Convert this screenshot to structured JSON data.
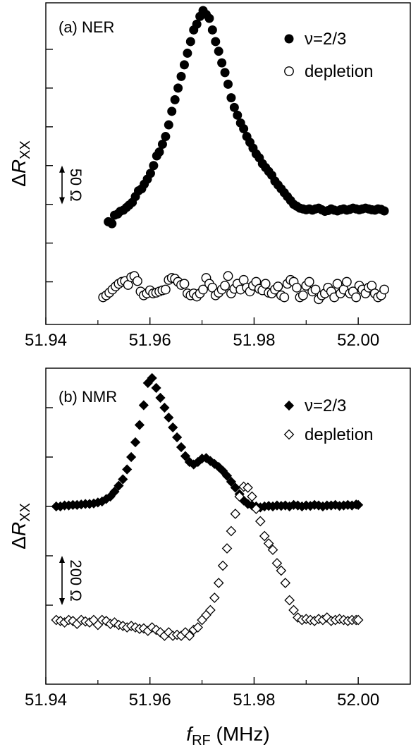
{
  "chart_data": [
    {
      "type": "scatter",
      "panel_label": "(a) NER",
      "ylabel": "ΔR",
      "ylabel_sub": "XX",
      "xlim": [
        51.94,
        52.01
      ],
      "x_ticks": [
        51.94,
        51.96,
        51.98,
        52.0
      ],
      "x_tick_labels": [
        "51.94",
        "51.96",
        "51.98",
        "52.00"
      ],
      "ylim": [
        -2.1,
        6.2
      ],
      "y_ticks": [
        -1,
        0,
        1,
        2,
        3,
        4,
        5
      ],
      "y_tick_labels": [],
      "y_units": "50 Ω per tick",
      "scale_bar": {
        "label": "50 Ω",
        "from": 1,
        "to": 2
      },
      "legend": {
        "position": "top-right"
      },
      "series": [
        {
          "name": "ν=2/3",
          "marker": "filled-circle",
          "x": [
            51.952,
            51.9527,
            51.9532,
            51.9538,
            51.9543,
            51.9549,
            51.9555,
            51.956,
            51.9566,
            51.9572,
            51.9578,
            51.9584,
            51.9589,
            51.9595,
            51.9601,
            51.9607,
            51.9613,
            51.9618,
            51.9624,
            51.963,
            51.9636,
            51.9642,
            51.9648,
            51.9654,
            51.966,
            51.9666,
            51.9672,
            51.9678,
            51.9684,
            51.969,
            51.9696,
            51.9702,
            51.9708,
            51.9714,
            51.972,
            51.9726,
            51.9732,
            51.9738,
            51.9744,
            51.975,
            51.9756,
            51.9762,
            51.9768,
            51.9774,
            51.978,
            51.9786,
            51.9792,
            51.9798,
            51.9804,
            51.981,
            51.9816,
            51.9822,
            51.9828,
            51.9834,
            51.984,
            51.9846,
            51.9852,
            51.9858,
            51.9864,
            51.987,
            51.9876,
            51.9882,
            51.9888,
            51.9894,
            51.99,
            51.9906,
            51.9912,
            51.9918,
            51.9924,
            51.993,
            51.9936,
            51.9942,
            51.9948,
            51.9954,
            51.996,
            51.9966,
            51.9972,
            51.9978,
            51.9984,
            51.999,
            51.9996,
            52.0002,
            52.0008,
            52.0014,
            52.002,
            52.0026,
            52.0032,
            52.0038,
            52.0044,
            52.005
          ],
          "y": [
            0.55,
            0.5,
            0.72,
            0.75,
            0.82,
            0.85,
            0.92,
            0.98,
            1.05,
            1.2,
            1.35,
            1.4,
            1.52,
            1.65,
            1.8,
            2.0,
            2.25,
            2.35,
            2.55,
            2.75,
            3.05,
            3.4,
            3.7,
            4.0,
            4.3,
            4.6,
            4.9,
            5.2,
            5.5,
            5.65,
            5.85,
            6.0,
            5.9,
            5.8,
            5.5,
            5.2,
            4.95,
            4.65,
            4.4,
            4.1,
            3.75,
            3.5,
            3.3,
            3.1,
            2.95,
            2.75,
            2.6,
            2.45,
            2.3,
            2.2,
            2.05,
            1.95,
            1.85,
            1.75,
            1.6,
            1.5,
            1.4,
            1.3,
            1.2,
            1.1,
            1.0,
            0.95,
            0.9,
            0.88,
            0.86,
            0.88,
            0.85,
            0.88,
            0.9,
            0.86,
            0.82,
            0.84,
            0.88,
            0.85,
            0.83,
            0.86,
            0.88,
            0.85,
            0.87,
            0.9,
            0.88,
            0.86,
            0.88,
            0.9,
            0.88,
            0.86,
            0.85,
            0.88,
            0.87,
            0.83
          ]
        },
        {
          "name": "depletion",
          "marker": "open-circle",
          "x": [
            51.951,
            51.9516,
            51.9522,
            51.9528,
            51.9534,
            51.954,
            51.9546,
            51.9552,
            51.9558,
            51.9564,
            51.957,
            51.9576,
            51.9582,
            51.9588,
            51.9594,
            51.96,
            51.9606,
            51.9612,
            51.9618,
            51.9624,
            51.963,
            51.9636,
            51.9642,
            51.9648,
            51.9654,
            51.966,
            51.9666,
            51.9672,
            51.9678,
            51.9684,
            51.969,
            51.9696,
            51.9702,
            51.9708,
            51.9714,
            51.972,
            51.9726,
            51.9732,
            51.9738,
            51.9744,
            51.975,
            51.9756,
            51.9762,
            51.9768,
            51.9774,
            51.978,
            51.9786,
            51.9792,
            51.9798,
            51.9804,
            51.981,
            51.9816,
            51.9822,
            51.9828,
            51.9834,
            51.984,
            51.9846,
            51.9852,
            51.9858,
            51.9864,
            51.987,
            51.9876,
            51.9882,
            51.9888,
            51.9894,
            51.99,
            51.9906,
            51.9912,
            51.9918,
            51.9924,
            51.993,
            51.9936,
            51.9942,
            51.9948,
            51.9954,
            51.996,
            51.9966,
            51.9972,
            51.9978,
            51.9984,
            51.999,
            51.9996,
            52.0002,
            52.0008,
            52.0014,
            52.002,
            52.0026,
            52.0032,
            52.0038,
            52.0044,
            52.005
          ],
          "y": [
            -1.4,
            -1.35,
            -1.28,
            -1.2,
            -1.12,
            -1.05,
            -1.0,
            -0.98,
            -1.08,
            -0.88,
            -0.85,
            -0.98,
            -1.25,
            -1.35,
            -1.3,
            -1.22,
            -1.3,
            -1.28,
            -1.25,
            -1.22,
            -1.2,
            -0.95,
            -0.9,
            -0.92,
            -1.0,
            -1.08,
            -1.05,
            -1.3,
            -1.35,
            -1.3,
            -1.38,
            -1.3,
            -1.2,
            -0.9,
            -1.05,
            -1.15,
            -1.35,
            -1.28,
            -1.2,
            -1.1,
            -0.85,
            -1.3,
            -1.18,
            -1.05,
            -1.2,
            -0.95,
            -1.15,
            -1.25,
            -1.1,
            -1.0,
            -1.18,
            -1.22,
            -1.05,
            -1.28,
            -1.3,
            -1.2,
            -1.12,
            -1.35,
            -1.4,
            -1.05,
            -0.95,
            -1.0,
            -1.15,
            -1.4,
            -1.35,
            -1.1,
            -1.0,
            -1.25,
            -1.2,
            -1.45,
            -1.35,
            -1.3,
            -1.15,
            -1.25,
            -1.4,
            -1.05,
            -1.3,
            -1.2,
            -1.0,
            -1.3,
            -1.25,
            -1.4,
            -1.1,
            -1.2,
            -1.3,
            -1.15,
            -1.1,
            -1.3,
            -1.4,
            -1.35,
            -1.2
          ]
        }
      ]
    },
    {
      "type": "scatter",
      "panel_label": "(b) NMR",
      "ylabel": "ΔR",
      "ylabel_sub": "XX",
      "xlabel": "f",
      "xlabel_sub": "RF",
      "xlabel_unit": " (MHz)",
      "xlim": [
        51.94,
        52.01
      ],
      "x_ticks": [
        51.94,
        51.96,
        51.98,
        52.0
      ],
      "x_tick_labels": [
        "51.94",
        "51.96",
        "51.98",
        "52.00"
      ],
      "ylim": [
        -3.6,
        2.8
      ],
      "y_ticks": [
        -2,
        -1,
        0,
        1,
        2
      ],
      "y_tick_labels": [],
      "y_units": "200 Ω per tick",
      "scale_bar": {
        "label": "200 Ω",
        "from": -2,
        "to": -1
      },
      "legend": {
        "position": "top-right"
      },
      "series": [
        {
          "name": "ν=2/3",
          "marker": "filled-diamond",
          "x": [
            51.942,
            51.9428,
            51.9436,
            51.9444,
            51.9452,
            51.946,
            51.9468,
            51.9476,
            51.9484,
            51.9492,
            51.95,
            51.9508,
            51.9516,
            51.9524,
            51.9532,
            51.954,
            51.9548,
            51.9556,
            51.9564,
            51.9572,
            51.958,
            51.9588,
            51.9596,
            51.9604,
            51.9612,
            51.962,
            51.9628,
            51.9636,
            51.9644,
            51.9652,
            51.966,
            51.9668,
            51.9676,
            51.9684,
            51.9692,
            51.97,
            51.9708,
            51.9716,
            51.9724,
            51.9732,
            51.974,
            51.9748,
            51.9756,
            51.9764,
            51.9772,
            51.978,
            51.9788,
            51.9796,
            51.9804,
            51.9812,
            51.982,
            51.9828,
            51.9836,
            51.9844,
            51.9852,
            51.986,
            51.9868,
            51.9876,
            51.9884,
            51.9892,
            51.99,
            51.9908,
            51.9916,
            51.9924,
            51.9932,
            51.994,
            51.9948,
            51.9956,
            51.9964,
            51.9972,
            51.998,
            51.9988,
            51.9996,
            52.0
          ],
          "y": [
            0.0,
            0.0,
            0.02,
            0.02,
            0.03,
            0.03,
            0.04,
            0.05,
            0.05,
            0.06,
            0.08,
            0.1,
            0.15,
            0.2,
            0.3,
            0.42,
            0.55,
            0.75,
            1.0,
            1.3,
            1.65,
            2.05,
            2.5,
            2.6,
            2.4,
            2.2,
            2.0,
            1.8,
            1.6,
            1.4,
            1.2,
            1.02,
            0.9,
            0.85,
            0.9,
            0.97,
            0.98,
            0.92,
            0.86,
            0.8,
            0.72,
            0.62,
            0.5,
            0.38,
            0.25,
            0.12,
            0.05,
            0.02,
            0.0,
            -0.02,
            0.0,
            0.01,
            0.0,
            0.02,
            0.01,
            0.02,
            0.0,
            0.03,
            0.02,
            0.0,
            0.02,
            0.01,
            0.03,
            0.02,
            0.0,
            0.02,
            0.02,
            0.03,
            0.01,
            0.02,
            0.03,
            0.02,
            0.04,
            0.03
          ]
        },
        {
          "name": "depletion",
          "marker": "open-diamond",
          "x": [
            51.942,
            51.9428,
            51.9436,
            51.9444,
            51.9452,
            51.946,
            51.9468,
            51.9476,
            51.9484,
            51.9492,
            51.95,
            51.9508,
            51.9516,
            51.9524,
            51.9532,
            51.954,
            51.9548,
            51.9556,
            51.9564,
            51.9572,
            51.958,
            51.9588,
            51.9596,
            51.9604,
            51.9612,
            51.962,
            51.9628,
            51.9636,
            51.9644,
            51.9652,
            51.966,
            51.9668,
            51.9676,
            51.9684,
            51.9692,
            51.97,
            51.9708,
            51.9716,
            51.9724,
            51.9732,
            51.974,
            51.9748,
            51.9756,
            51.9764,
            51.9772,
            51.978,
            51.9788,
            51.9796,
            51.9804,
            51.9812,
            51.982,
            51.9828,
            51.9836,
            51.9844,
            51.9852,
            51.986,
            51.9868,
            51.9876,
            51.9884,
            51.9892,
            51.99,
            51.9908,
            51.9916,
            51.9924,
            51.9932,
            51.994,
            51.9948,
            51.9956,
            51.9964,
            51.9972,
            51.998,
            51.9988,
            51.9996,
            52.0
          ],
          "y": [
            -2.3,
            -2.32,
            -2.35,
            -2.3,
            -2.32,
            -2.38,
            -2.3,
            -2.33,
            -2.35,
            -2.3,
            -2.4,
            -2.3,
            -2.32,
            -2.38,
            -2.35,
            -2.4,
            -2.42,
            -2.45,
            -2.42,
            -2.45,
            -2.48,
            -2.47,
            -2.52,
            -2.45,
            -2.5,
            -2.55,
            -2.62,
            -2.55,
            -2.62,
            -2.6,
            -2.62,
            -2.55,
            -2.62,
            -2.5,
            -2.45,
            -2.3,
            -2.2,
            -2.1,
            -1.85,
            -1.55,
            -1.2,
            -0.85,
            -0.5,
            -0.15,
            0.2,
            0.4,
            0.38,
            0.2,
            -0.05,
            -0.3,
            -0.6,
            -0.75,
            -0.88,
            -1.15,
            -1.3,
            -1.55,
            -1.9,
            -2.1,
            -2.25,
            -2.3,
            -2.28,
            -2.3,
            -2.32,
            -2.28,
            -2.3,
            -2.25,
            -2.32,
            -2.3,
            -2.28,
            -2.3,
            -2.32,
            -2.3,
            -2.3,
            -2.3
          ]
        }
      ]
    }
  ]
}
